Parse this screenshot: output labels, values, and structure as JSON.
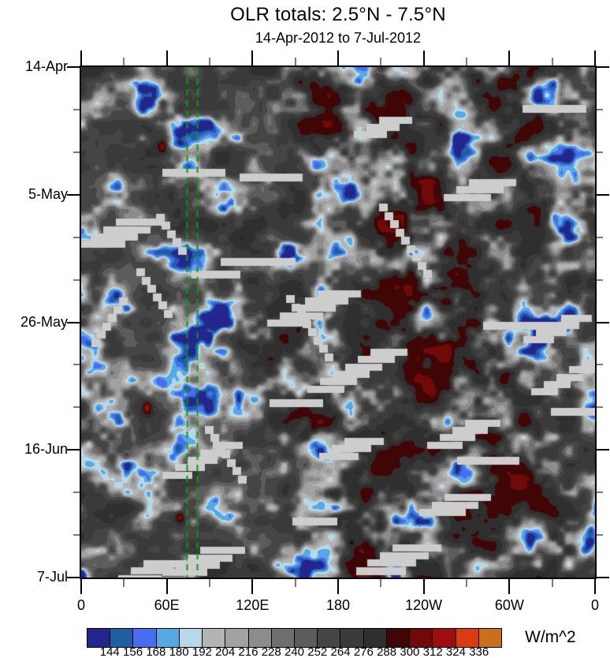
{
  "chart_data": {
    "type": "heatmap",
    "title": "OLR totals: 2.5°N - 7.5°N",
    "subtitle": "14-Apr-2012 to 7-Jul-2012",
    "x_axis": {
      "label_ticks": [
        "0",
        "60E",
        "120E",
        "180",
        "120W",
        "60W",
        "0"
      ],
      "tick_degrees": [
        0,
        60,
        120,
        180,
        240,
        300,
        360
      ],
      "minor_step_degrees": 30,
      "range_degrees": [
        0,
        360
      ]
    },
    "y_axis": {
      "label_ticks": [
        "14-Apr",
        "5-May",
        "26-May",
        "16-Jun",
        "7-Jul"
      ],
      "major_step_days": 21,
      "minor_step_days": 7,
      "range_days": [
        0,
        84
      ],
      "direction": "top-to-bottom"
    },
    "colorbar": {
      "units": "W/m^2",
      "boundary_labels": [
        "144",
        "156",
        "168",
        "180",
        "192",
        "204",
        "216",
        "228",
        "240",
        "252",
        "264",
        "276",
        "288",
        "300",
        "312",
        "324",
        "336"
      ],
      "contour_interval": 12,
      "colors": [
        "#24268e",
        "#1e5ea1",
        "#4a6cf0",
        "#57a9e4",
        "#b7d8e8",
        "#b4b4b4",
        "#a2a2a2",
        "#8c8c8c",
        "#6f6f6f",
        "#5c5c5c",
        "#454545",
        "#3a3a3a",
        "#2f2f2f",
        "#400606",
        "#700a0a",
        "#9e0e0e",
        "#da3b10",
        "#c9701f"
      ]
    },
    "overlay_lines": {
      "color": "#0c9a10",
      "style": "dashed",
      "longitudes_east": [
        74,
        81
      ]
    },
    "missing_data": {
      "color": "#cdcdcd"
    },
    "features": {
      "low_olr_regions": [
        [
          35,
          3,
          -40,
          16,
          9
        ],
        [
          80,
          17,
          -42,
          10,
          12
        ],
        [
          57,
          25,
          -30,
          8,
          8
        ],
        [
          93,
          41,
          -48,
          16,
          12
        ],
        [
          78,
          44,
          -35,
          8,
          10
        ],
        [
          120,
          33,
          -35,
          22,
          8
        ],
        [
          165,
          21,
          -30,
          12,
          8
        ],
        [
          95,
          70,
          -45,
          12,
          12
        ],
        [
          140,
          66,
          -35,
          14,
          10
        ],
        [
          185,
          55,
          -30,
          12,
          9
        ],
        [
          250,
          28,
          -28,
          10,
          8
        ],
        [
          300,
          23,
          -30,
          9,
          9
        ],
        [
          330,
          3,
          -32,
          10,
          8
        ],
        [
          210,
          62,
          -28,
          10,
          8
        ],
        [
          320,
          57,
          -25,
          10,
          8
        ],
        [
          75,
          81,
          -38,
          10,
          8
        ]
      ],
      "high_olr_regions": [
        [
          56,
          6,
          46,
          6,
          9
        ],
        [
          57,
          13,
          40,
          5,
          8
        ],
        [
          46,
          56,
          40,
          5,
          7
        ],
        [
          69,
          74,
          42,
          6,
          8
        ]
      ]
    },
    "render_seed": 20120414
  }
}
